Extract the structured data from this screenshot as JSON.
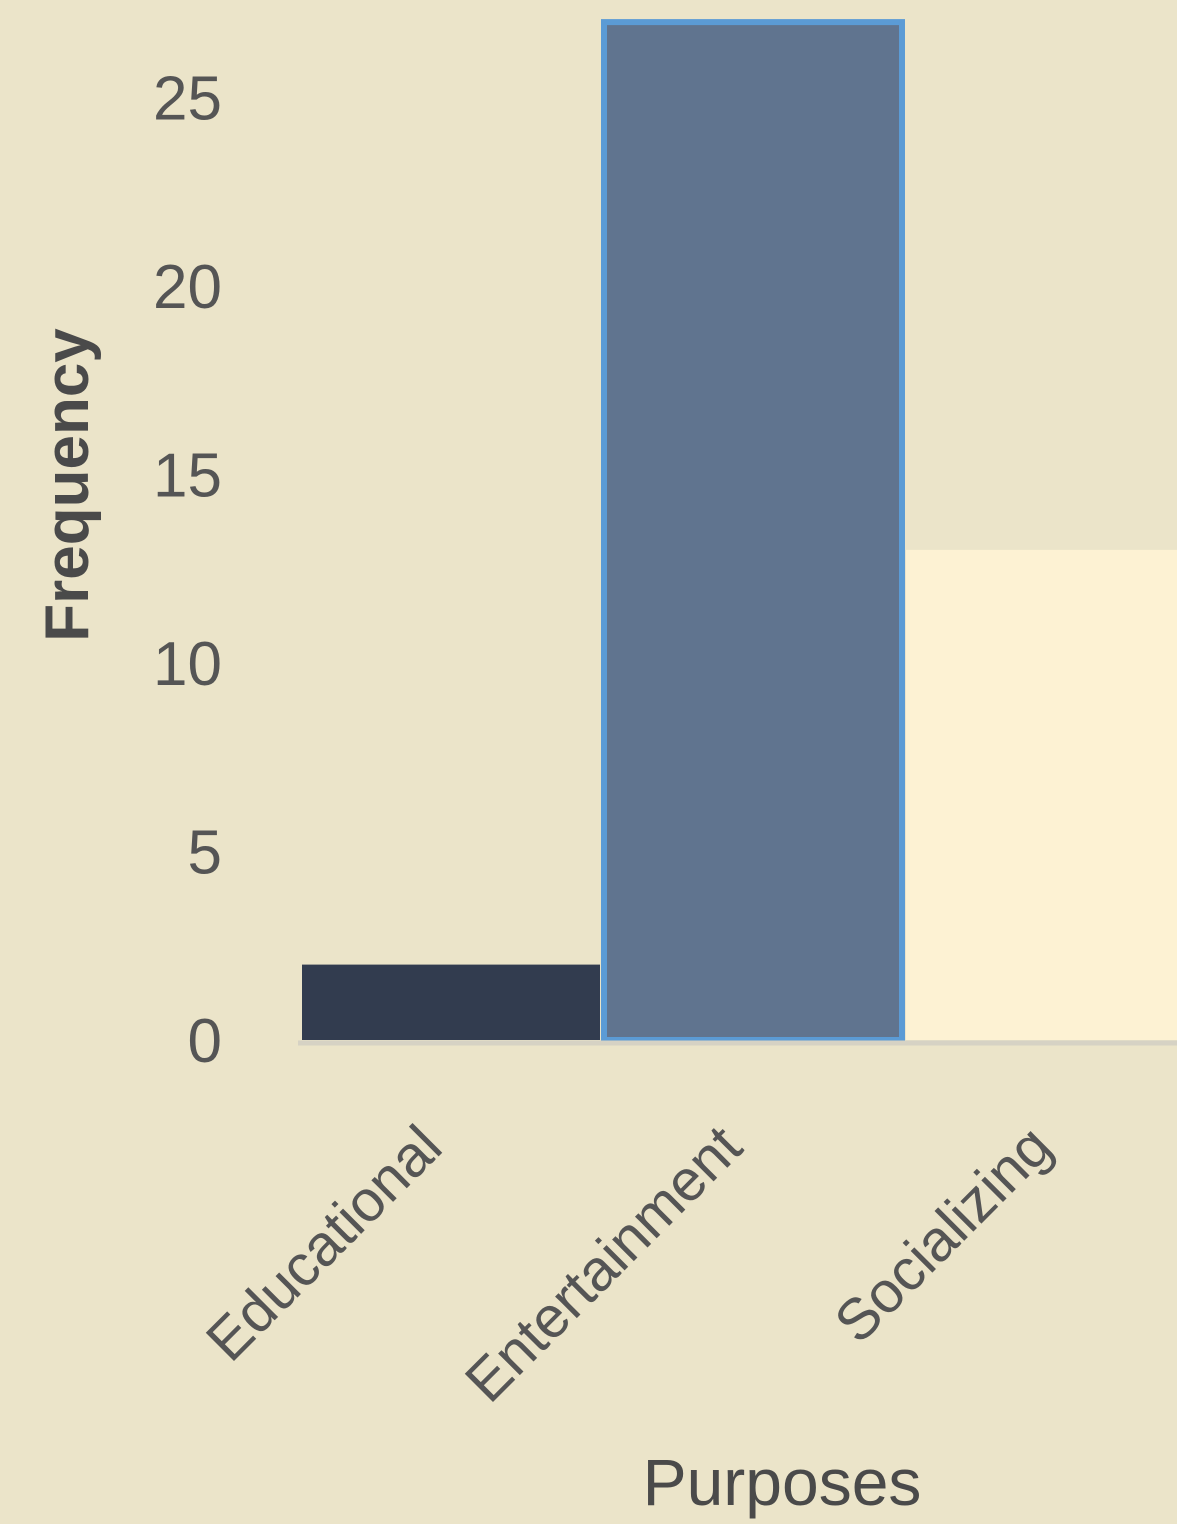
{
  "chart_data": {
    "type": "bar",
    "title": "",
    "xlabel": "Purposes",
    "ylabel": "Frequency",
    "categories": [
      "Educational",
      "Entertainment",
      "Socializing"
    ],
    "values": [
      2,
      27,
      13
    ],
    "y_ticks": [
      "0",
      "5",
      "10",
      "15",
      "20",
      "25"
    ],
    "ylim": [
      0,
      27
    ],
    "grid": false,
    "legend": "none"
  },
  "colors": {
    "background": "#ebe4c9",
    "bar_colors": [
      "#323c4f",
      "#60748f",
      "#fdf2d3"
    ],
    "bar_highlight_stroke": "#5b9bd5",
    "axis_line": "#d6d2c4",
    "tick_text": "#555555",
    "label_text": "#4a4a4a"
  }
}
